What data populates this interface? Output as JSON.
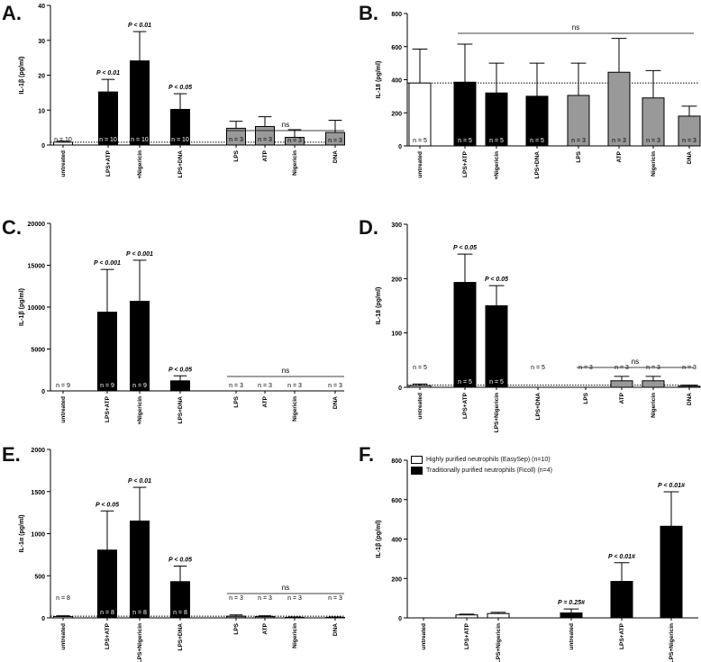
{
  "chart_data": [
    {
      "panel": "A.",
      "type": "bar",
      "ylabel": "IL-1β (pg/ml)",
      "ylim": [
        0,
        40
      ],
      "yticks": [
        "0",
        "10",
        "20",
        "30",
        "40"
      ],
      "categories": [
        "untreated",
        "LPS+ATP",
        "+Nigericin",
        "LPS+DNA",
        "LPS",
        "ATP",
        "Nigericin",
        "DNA"
      ],
      "values": [
        0.8,
        15.2,
        24.1,
        10.2,
        4.8,
        5.3,
        2.2,
        3.6
      ],
      "errors": [
        0.3,
        3.6,
        8.4,
        4.5,
        2.0,
        2.8,
        2.2,
        3.5
      ],
      "fills": [
        "#ffffff",
        "#000000",
        "#000000",
        "#000000",
        "#999999",
        "#999999",
        "#999999",
        "#999999"
      ],
      "n_labels": [
        "n = 10",
        "n = 10",
        "n = 10",
        "n = 10",
        "n = 3",
        "n = 3",
        "n = 3",
        "n = 3"
      ],
      "p_labels": [
        "",
        "P < 0.01",
        "P < 0.01",
        "P < 0.05",
        "",
        "",
        "",
        ""
      ],
      "ns_label": "ns",
      "baseline": 0.8
    },
    {
      "panel": "B.",
      "type": "bar",
      "ylabel": "IL-18 (pg/ml)",
      "ylim": [
        0,
        800
      ],
      "yticks": [
        "0",
        "200",
        "400",
        "600",
        "800"
      ],
      "categories": [
        "untreated",
        "LPS+ATP",
        "+Nigericin",
        "LPS+DNA",
        "LPS",
        "ATP",
        "Nigericin",
        "DNA"
      ],
      "values": [
        380,
        385,
        320,
        300,
        305,
        445,
        290,
        180
      ],
      "errors": [
        205,
        230,
        180,
        200,
        195,
        205,
        165,
        60
      ],
      "fills": [
        "#ffffff",
        "#000000",
        "#000000",
        "#000000",
        "#999999",
        "#999999",
        "#999999",
        "#999999"
      ],
      "n_labels": [
        "n = 5",
        "n = 5",
        "n = 5",
        "n = 5",
        "n = 3",
        "n = 3",
        "n = 3",
        "n = 3"
      ],
      "p_labels": [
        "",
        "",
        "",
        "",
        "",
        "",
        "",
        ""
      ],
      "ns_label": "ns",
      "baseline": 380
    },
    {
      "panel": "C.",
      "type": "bar",
      "ylabel": "IL-1β (pg/ml)",
      "ylim": [
        0,
        20000
      ],
      "yticks": [
        "0",
        "5000",
        "10000",
        "15000",
        "20000"
      ],
      "categories": [
        "untreated",
        "LPS+ATP",
        "+Nigericin",
        "LPS+DNA",
        "LPS",
        "ATP",
        "Nigericin",
        "DNA"
      ],
      "values": [
        0,
        9400,
        10700,
        1200,
        0,
        0,
        0,
        0
      ],
      "errors": [
        0,
        5100,
        4900,
        600,
        0,
        0,
        0,
        0
      ],
      "fills": [
        "#ffffff",
        "#000000",
        "#000000",
        "#000000",
        "#999999",
        "#999999",
        "#999999",
        "#999999"
      ],
      "n_labels": [
        "n = 9",
        "n = 9",
        "n = 9",
        "n = 9",
        "n = 3",
        "n = 3",
        "n = 3",
        "n = 3"
      ],
      "p_labels": [
        "",
        "P < 0.001",
        "P < 0.001",
        "P < 0.05",
        "",
        "",
        "",
        ""
      ],
      "ns_label": "ns",
      "baseline": null
    },
    {
      "panel": "D.",
      "type": "bar",
      "ylabel": "IL-18 (pg/ml)",
      "ylim": [
        0,
        300
      ],
      "yticks": [
        "0",
        "100",
        "200",
        "300"
      ],
      "categories": [
        "untreated",
        "LPS+ATP",
        "LPS+Nigericin",
        "LPS+DNA",
        "LPS",
        "ATP",
        "Nigericin",
        "DNA"
      ],
      "values": [
        3,
        193,
        150,
        0,
        0,
        12,
        12,
        2
      ],
      "errors": [
        3,
        52,
        37,
        0,
        0,
        8,
        8,
        2
      ],
      "fills": [
        "#ffffff",
        "#000000",
        "#000000",
        "#000000",
        "#999999",
        "#999999",
        "#999999",
        "#999999"
      ],
      "n_labels": [
        "n = 5",
        "n = 5",
        "n = 5",
        "n = 5",
        "n = 3",
        "n = 3",
        "n = 3",
        "n = 3"
      ],
      "p_labels": [
        "",
        "P < 0.05",
        "P < 0.05",
        "",
        "",
        "",
        "",
        ""
      ],
      "ns_label": "ns",
      "baseline": 4
    },
    {
      "panel": "E.",
      "type": "bar",
      "ylabel": "IL-1α (pg/ml)",
      "ylim": [
        0,
        2000
      ],
      "yticks": [
        "0",
        "500",
        "1000",
        "1500",
        "2000"
      ],
      "categories": [
        "untreated",
        "LPS+ATP",
        "LPS+Nigericin",
        "LPS+DNA",
        "LPS",
        "ATP",
        "Nigericin",
        "DNA"
      ],
      "values": [
        15,
        805,
        1150,
        430,
        20,
        15,
        5,
        5
      ],
      "errors": [
        10,
        465,
        400,
        185,
        15,
        10,
        5,
        5
      ],
      "fills": [
        "#ffffff",
        "#000000",
        "#000000",
        "#000000",
        "#999999",
        "#999999",
        "#999999",
        "#999999"
      ],
      "n_labels": [
        "n = 8",
        "n = 8",
        "n = 8",
        "n = 8",
        "n = 3",
        "n = 3",
        "n = 3",
        "n = 3"
      ],
      "p_labels": [
        "",
        "P < 0.05",
        "P < 0.01",
        "P < 0.05",
        "",
        "",
        "",
        ""
      ],
      "ns_label": "ns",
      "baseline": 20
    },
    {
      "panel": "F.",
      "type": "bar",
      "ylabel": "IL-1β (pg/ml)",
      "ylim": [
        0,
        800
      ],
      "yticks": [
        "0",
        "200",
        "400",
        "600",
        "800"
      ],
      "categories": [
        "untreated",
        "LPS+ATP",
        "LPS+Nigericin",
        "untreated",
        "LPS+ATP",
        "LPS+Nigericin"
      ],
      "values": [
        0,
        15,
        22,
        25,
        185,
        465
      ],
      "errors": [
        0,
        4,
        6,
        20,
        95,
        175
      ],
      "fills": [
        "#ffffff",
        "#ffffff",
        "#ffffff",
        "#000000",
        "#000000",
        "#000000"
      ],
      "n_labels": [
        "",
        "",
        "",
        "",
        "",
        ""
      ],
      "p_labels": [
        "",
        "",
        "",
        "P = 0.25#",
        "P < 0.01#",
        "P < 0.01#"
      ],
      "ns_label": "",
      "baseline": null,
      "legend": [
        {
          "label": "Highly purified neutrophils (EasySep) (n=10)",
          "color": "#ffffff"
        },
        {
          "label": "Traditionally purified neutrophils (Ficoll) (n=4)",
          "color": "#000000"
        }
      ]
    }
  ]
}
